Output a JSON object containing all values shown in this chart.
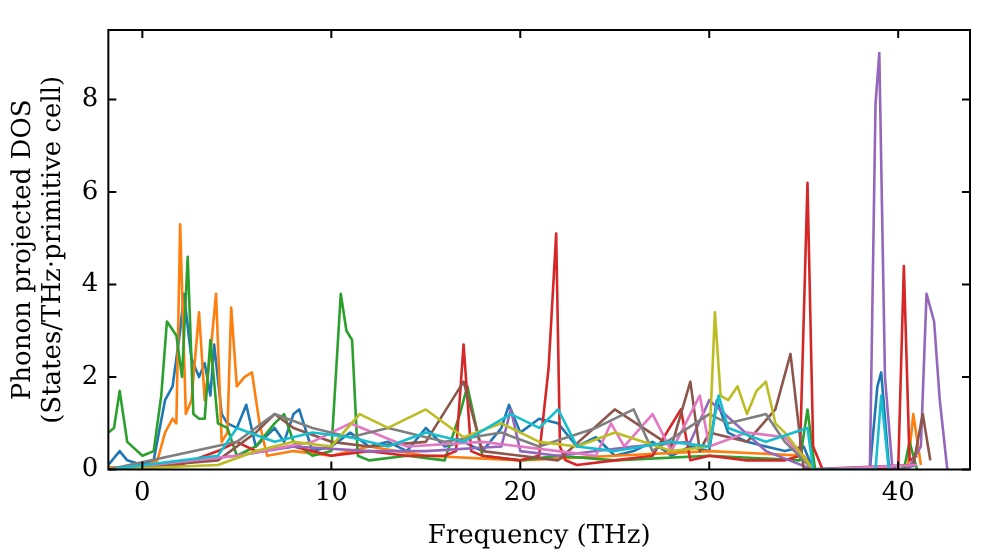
{
  "chart_data": {
    "type": "line",
    "xlabel": "Frequency (THz)",
    "ylabel": "Phonon projected DOS\n(States/THz·primitive cell)",
    "xlim": [
      -1.8,
      43.8
    ],
    "ylim": [
      0,
      9.5
    ],
    "xticks": [
      0,
      10,
      20,
      30,
      40
    ],
    "yticks": [
      0,
      2,
      4,
      6,
      8
    ],
    "legend": false,
    "series": [
      {
        "color": "#1f77b4",
        "x": [
          -1.8,
          -1.2,
          -0.8,
          0,
          0.6,
          1.2,
          1.6,
          2.0,
          2.2,
          2.6,
          3.0,
          3.3,
          3.6,
          3.8,
          4.2,
          4.5,
          5.0,
          5.5,
          6.0,
          6.5,
          7.0,
          7.5,
          8.0,
          8.3,
          9.0,
          10,
          11,
          12,
          13,
          14,
          15,
          16,
          17,
          18,
          19,
          19.4,
          20,
          21,
          22,
          23,
          24,
          25,
          26,
          27,
          28,
          29,
          30,
          30.4,
          31,
          32,
          33,
          34,
          35,
          35.5,
          38.5,
          38.9,
          39.1,
          39.5,
          40,
          41
        ],
        "values": [
          0.1,
          0.4,
          0.2,
          0.1,
          0.2,
          1.5,
          1.8,
          3.0,
          3.8,
          2.4,
          2.0,
          2.3,
          1.6,
          2.7,
          1.2,
          1.0,
          0.9,
          1.4,
          0.5,
          0.7,
          0.9,
          0.6,
          1.2,
          1.3,
          0.4,
          0.5,
          0.8,
          0.5,
          0.6,
          0.4,
          0.9,
          0.5,
          0.6,
          0.4,
          0.9,
          1.4,
          0.8,
          1.1,
          1.0,
          0.5,
          0.7,
          0.3,
          0.4,
          0.6,
          0.3,
          0.5,
          0.4,
          1.5,
          0.8,
          0.6,
          0.5,
          0.4,
          0.5,
          0,
          0,
          1.8,
          2.1,
          0.1,
          0,
          0.1
        ]
      },
      {
        "color": "#ff7f0e",
        "x": [
          -1.8,
          0,
          0.8,
          1.2,
          1.6,
          1.8,
          2.0,
          2.3,
          2.6,
          3.0,
          3.3,
          3.6,
          3.9,
          4.2,
          4.5,
          4.7,
          5.0,
          5.4,
          5.8,
          6.2,
          6.6,
          8,
          10,
          12,
          15,
          20,
          25,
          30,
          35,
          35.5,
          40.5,
          40.8,
          41.2
        ],
        "values": [
          0.05,
          0.05,
          0.2,
          0.8,
          1.1,
          1.0,
          5.3,
          1.2,
          1.5,
          3.4,
          1.5,
          2.5,
          3.8,
          0.6,
          0.8,
          3.5,
          1.8,
          2.0,
          2.1,
          1.0,
          0.3,
          0.4,
          0.3,
          0.5,
          0.3,
          0.2,
          0.3,
          0.4,
          0.3,
          0,
          0,
          1.2,
          0.1
        ]
      },
      {
        "color": "#2ca02c",
        "x": [
          -1.8,
          -1.5,
          -1.2,
          -0.8,
          0,
          0.6,
          1.0,
          1.3,
          1.8,
          2.1,
          2.4,
          2.7,
          3.0,
          3.3,
          3.6,
          4.0,
          4.5,
          5.0,
          6.0,
          7.0,
          7.5,
          8.0,
          9.0,
          10.0,
          10.5,
          10.8,
          11.1,
          11.4,
          12,
          14,
          16,
          16.8,
          17.2,
          18,
          20,
          22,
          25,
          30,
          34.8,
          35.2,
          35.6,
          40.3,
          40.6,
          41
        ],
        "values": [
          0.8,
          0.9,
          1.7,
          0.6,
          0.3,
          0.4,
          1.6,
          3.2,
          2.9,
          2.0,
          4.6,
          1.2,
          1.1,
          1.1,
          2.8,
          1.0,
          0.9,
          0.3,
          0.5,
          1.0,
          1.2,
          0.6,
          0.3,
          0.4,
          3.8,
          3.0,
          2.8,
          0.3,
          0.2,
          0.3,
          0.2,
          1.2,
          1.8,
          0.3,
          0.2,
          0.3,
          0.2,
          0.3,
          0.2,
          1.3,
          0,
          0,
          0.6,
          0
        ]
      },
      {
        "color": "#d62728",
        "x": [
          -1.8,
          2,
          4,
          5,
          6,
          8,
          10,
          12,
          14,
          16,
          16.6,
          17.0,
          17.4,
          18,
          20,
          21,
          21.5,
          21.9,
          22.1,
          22.4,
          23,
          25,
          27,
          28.5,
          29,
          30,
          32,
          34,
          34.8,
          35.2,
          35.5,
          36,
          40,
          40.3,
          40.6,
          41
        ],
        "values": [
          0,
          0.1,
          0.4,
          0.6,
          0.4,
          0.5,
          0.3,
          0.4,
          0.3,
          0.3,
          0.4,
          2.7,
          0.4,
          0.3,
          0.2,
          0.3,
          2.2,
          5.1,
          0.5,
          0.2,
          0.1,
          0.2,
          0.3,
          1.3,
          0.2,
          0.3,
          0.2,
          0.2,
          0.3,
          6.2,
          0.5,
          0,
          0,
          4.4,
          0.2,
          0.3
        ]
      },
      {
        "color": "#9467bd",
        "x": [
          -1.8,
          5,
          8,
          12,
          15,
          19,
          19.5,
          20,
          22,
          26,
          29,
          30,
          33,
          35.5,
          38.5,
          38.8,
          39.0,
          39.3,
          39.7,
          40.5,
          41.2,
          41.5,
          41.9,
          42.2,
          42.6
        ],
        "values": [
          0,
          0.3,
          0.5,
          0.4,
          0.4,
          0.5,
          1.3,
          0.4,
          0.3,
          0.5,
          0.6,
          1.5,
          0.4,
          0,
          0,
          7.9,
          9.0,
          2.0,
          0,
          0,
          0.5,
          3.8,
          3.2,
          1.5,
          0
        ]
      },
      {
        "color": "#8c564b",
        "x": [
          -1.8,
          4,
          6,
          7,
          8,
          10,
          12,
          15,
          17,
          18,
          22,
          25,
          28,
          29,
          29.5,
          30,
          32,
          33.5,
          34.3,
          35,
          40.8,
          41.3,
          41.7
        ],
        "values": [
          0,
          0.2,
          0.8,
          1.2,
          0.9,
          0.6,
          0.5,
          0.6,
          1.9,
          0.4,
          0.2,
          1.3,
          0.5,
          1.9,
          0.4,
          0.8,
          0.6,
          1.3,
          2.5,
          0,
          0.1,
          1.2,
          0.2
        ]
      },
      {
        "color": "#e377c2",
        "x": [
          -1.8,
          5,
          9,
          11,
          14,
          18,
          22,
          24,
          24.8,
          25.5,
          27,
          28,
          29.5,
          30,
          32,
          34,
          35.5,
          41
        ],
        "values": [
          0,
          0.3,
          0.6,
          1.0,
          0.5,
          0.6,
          0.4,
          0.3,
          1.0,
          0.5,
          1.2,
          0.4,
          1.6,
          0.5,
          0.8,
          0.7,
          0,
          0.1
        ]
      },
      {
        "color": "#7f7f7f",
        "x": [
          -1.8,
          5,
          7,
          9,
          11,
          13,
          16,
          19,
          21,
          24,
          26,
          27,
          30,
          31,
          33,
          34,
          35.5
        ],
        "values": [
          0,
          0.6,
          1.2,
          0.9,
          0.7,
          0.9,
          0.6,
          0.8,
          0.5,
          0.9,
          1.3,
          0.4,
          1.2,
          1.0,
          1.2,
          0.6,
          0
        ]
      },
      {
        "color": "#bcbd22",
        "x": [
          -1.8,
          4,
          6,
          8,
          10,
          11.5,
          13,
          15,
          17,
          19,
          21,
          23,
          25,
          28,
          30,
          30.3,
          30.6,
          31,
          31.5,
          32,
          32.5,
          33,
          33.5,
          34,
          35.5
        ],
        "values": [
          0,
          0.1,
          0.4,
          0.6,
          0.5,
          1.2,
          0.9,
          1.3,
          0.7,
          1.0,
          0.6,
          0.5,
          0.8,
          0.4,
          0.5,
          3.4,
          1.6,
          1.5,
          1.8,
          1.2,
          1.7,
          1.9,
          1.0,
          0.8,
          0
        ]
      },
      {
        "color": "#17becf",
        "x": [
          -1.8,
          4,
          5,
          7,
          9,
          11,
          13,
          15,
          17,
          19.5,
          21,
          22,
          23,
          25,
          28,
          30,
          30.5,
          31,
          33,
          35.2,
          35.5,
          38.8,
          39.1,
          39.5
        ],
        "values": [
          0,
          0.3,
          0.9,
          0.6,
          0.8,
          0.7,
          0.5,
          0.8,
          0.6,
          1.2,
          0.9,
          1.3,
          0.5,
          0.4,
          0.6,
          0.5,
          1.6,
          0.9,
          0.6,
          0.9,
          0,
          0,
          1.6,
          0
        ]
      }
    ]
  }
}
